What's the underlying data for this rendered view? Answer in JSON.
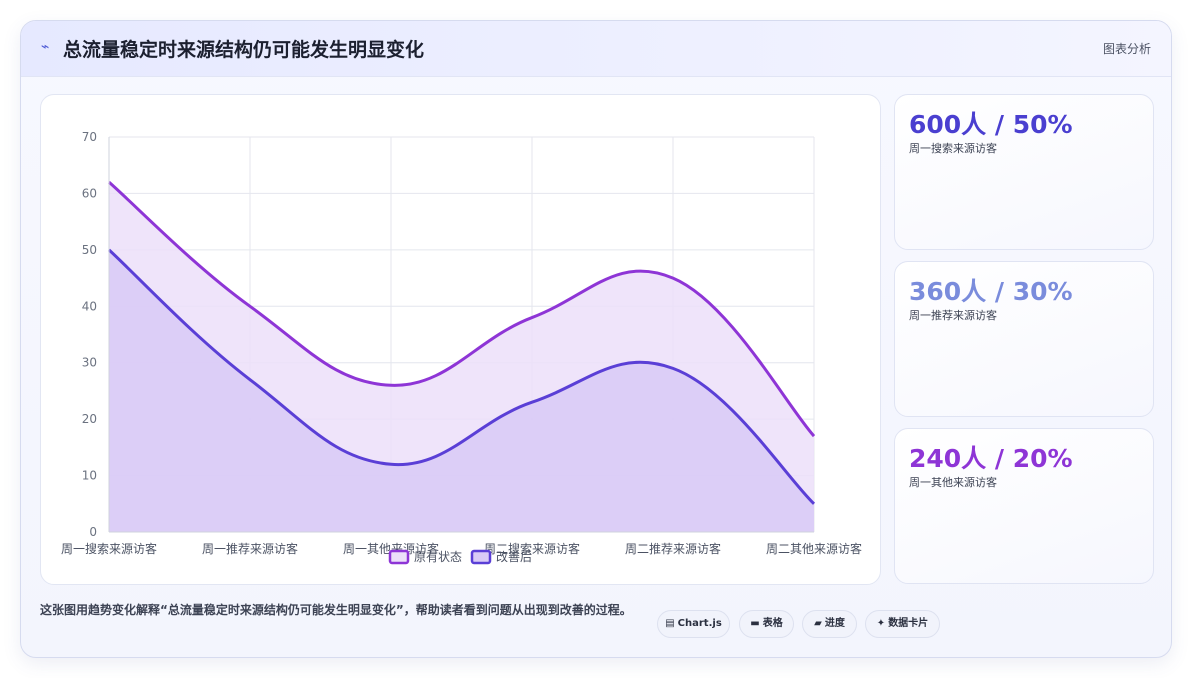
{
  "header": {
    "icon": "lightning-icon",
    "title": "总流量稳定时来源结构仍可能发生明显变化",
    "tag": "图表分析"
  },
  "chart_data": {
    "type": "area",
    "categories": [
      "周一搜索来源访客",
      "周一推荐来源访客",
      "周一其他来源访客",
      "周二搜索来源访客",
      "周二推荐来源访客",
      "周二其他来源访客"
    ],
    "series": [
      {
        "name": "原有状态",
        "values": [
          62,
          40,
          26,
          38,
          45,
          17
        ],
        "color": "#8e35d6",
        "fill": "#ecdff9"
      },
      {
        "name": "改善后",
        "values": [
          50,
          27,
          12,
          23,
          29,
          5
        ],
        "color": "#5a3fd6",
        "fill": "#d9cbf6"
      }
    ],
    "ylim": [
      0,
      70
    ],
    "yticks": [
      0,
      10,
      20,
      30,
      40,
      50,
      60,
      70
    ],
    "grid": true,
    "legend": "bottom"
  },
  "stats": [
    {
      "value": "600人 / 50%",
      "label": "周一搜索来源访客",
      "color": "#4a3fd0"
    },
    {
      "value": "360人 / 30%",
      "label": "周一推荐来源访客",
      "color": "#7a8cdc"
    },
    {
      "value": "240人 / 20%",
      "label": "周一其他来源访客",
      "color": "#8e35d6"
    }
  ],
  "caption": "这张图用趋势变化解释“总流量稳定时来源结构仍可能发生明显变化”，帮助读者看到问题从出现到改善的过程。",
  "chips": [
    {
      "icon": "▤",
      "icon_name": "chart-icon",
      "label": "Chart.js"
    },
    {
      "icon": "▬",
      "icon_name": "table-icon",
      "label": "表格"
    },
    {
      "icon": "▰",
      "icon_name": "progress-icon",
      "label": "进度"
    },
    {
      "icon": "✦",
      "icon_name": "sparkle-icon",
      "label": "数据卡片"
    }
  ]
}
